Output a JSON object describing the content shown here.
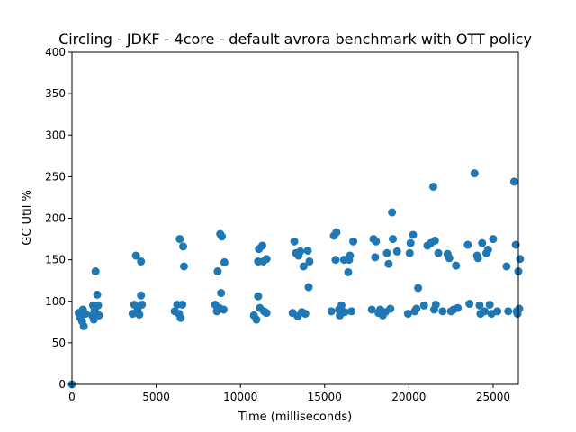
{
  "chart_data": {
    "type": "scatter",
    "title": "Circling - JDKF - 4core -  default avrora benchmark with OTT policy",
    "xlabel": "Time (milliseconds)",
    "ylabel": "GC Util %",
    "xlim": [
      0,
      26500
    ],
    "ylim": [
      0,
      400
    ],
    "xticks": [
      0,
      5000,
      10000,
      15000,
      20000,
      25000
    ],
    "yticks": [
      0,
      50,
      100,
      150,
      200,
      250,
      300,
      350,
      400
    ],
    "grid": false,
    "marker_color": "#1f77b4",
    "series": [
      {
        "points": [
          [
            0,
            0
          ],
          [
            400,
            86
          ],
          [
            500,
            80
          ],
          [
            600,
            76
          ],
          [
            650,
            90
          ],
          [
            700,
            70
          ],
          [
            800,
            85
          ],
          [
            1200,
            83
          ],
          [
            1250,
            95
          ],
          [
            1300,
            78
          ],
          [
            1350,
            90
          ],
          [
            1400,
            136
          ],
          [
            1500,
            108
          ],
          [
            1550,
            95
          ],
          [
            1600,
            83
          ],
          [
            3600,
            85
          ],
          [
            3700,
            96
          ],
          [
            3800,
            155
          ],
          [
            3900,
            90
          ],
          [
            4000,
            84
          ],
          [
            4100,
            148
          ],
          [
            4100,
            107
          ],
          [
            4150,
            96
          ],
          [
            6100,
            88
          ],
          [
            6250,
            96
          ],
          [
            6350,
            85
          ],
          [
            6400,
            175
          ],
          [
            6450,
            80
          ],
          [
            6550,
            96
          ],
          [
            6600,
            166
          ],
          [
            6650,
            142
          ],
          [
            8500,
            96
          ],
          [
            8600,
            88
          ],
          [
            8650,
            136
          ],
          [
            8750,
            92
          ],
          [
            8800,
            181
          ],
          [
            8850,
            110
          ],
          [
            8900,
            178
          ],
          [
            9000,
            90
          ],
          [
            9050,
            147
          ],
          [
            10800,
            83
          ],
          [
            10950,
            78
          ],
          [
            11050,
            106
          ],
          [
            11050,
            148
          ],
          [
            11100,
            163
          ],
          [
            11150,
            92
          ],
          [
            11300,
            167
          ],
          [
            11350,
            148
          ],
          [
            11400,
            88
          ],
          [
            11550,
            151
          ],
          [
            11550,
            86
          ],
          [
            13100,
            86
          ],
          [
            13200,
            172
          ],
          [
            13300,
            158
          ],
          [
            13400,
            82
          ],
          [
            13450,
            155
          ],
          [
            13550,
            160
          ],
          [
            13650,
            87
          ],
          [
            13750,
            142
          ],
          [
            13850,
            85
          ],
          [
            14000,
            161
          ],
          [
            14050,
            117
          ],
          [
            14100,
            148
          ],
          [
            15400,
            88
          ],
          [
            15550,
            179
          ],
          [
            15650,
            150
          ],
          [
            15700,
            183
          ],
          [
            15850,
            90
          ],
          [
            15900,
            83
          ],
          [
            16000,
            95
          ],
          [
            16150,
            150
          ],
          [
            16200,
            87
          ],
          [
            16400,
            135
          ],
          [
            16450,
            150
          ],
          [
            16500,
            155
          ],
          [
            16600,
            88
          ],
          [
            16700,
            172
          ],
          [
            17800,
            90
          ],
          [
            17900,
            175
          ],
          [
            18000,
            153
          ],
          [
            18050,
            172
          ],
          [
            18200,
            86
          ],
          [
            18300,
            90
          ],
          [
            18450,
            83
          ],
          [
            18600,
            87
          ],
          [
            18700,
            158
          ],
          [
            18800,
            145
          ],
          [
            18900,
            91
          ],
          [
            19000,
            207
          ],
          [
            19050,
            175
          ],
          [
            19300,
            160
          ],
          [
            19950,
            85
          ],
          [
            20050,
            158
          ],
          [
            20100,
            170
          ],
          [
            20250,
            180
          ],
          [
            20350,
            88
          ],
          [
            20450,
            91
          ],
          [
            20550,
            116
          ],
          [
            20900,
            95
          ],
          [
            21100,
            167
          ],
          [
            21300,
            170
          ],
          [
            21450,
            238
          ],
          [
            21500,
            90
          ],
          [
            21550,
            173
          ],
          [
            21600,
            96
          ],
          [
            21750,
            158
          ],
          [
            22000,
            88
          ],
          [
            22300,
            157
          ],
          [
            22400,
            152
          ],
          [
            22500,
            88
          ],
          [
            22650,
            90
          ],
          [
            22800,
            143
          ],
          [
            22900,
            92
          ],
          [
            23500,
            168
          ],
          [
            23600,
            97
          ],
          [
            23900,
            254
          ],
          [
            24050,
            155
          ],
          [
            24100,
            152
          ],
          [
            24200,
            95
          ],
          [
            24250,
            85
          ],
          [
            24350,
            170
          ],
          [
            24500,
            88
          ],
          [
            24600,
            158
          ],
          [
            24700,
            162
          ],
          [
            24800,
            96
          ],
          [
            24900,
            85
          ],
          [
            25000,
            175
          ],
          [
            25250,
            88
          ],
          [
            25800,
            142
          ],
          [
            25900,
            88
          ],
          [
            26250,
            244
          ],
          [
            26350,
            168
          ],
          [
            26400,
            88
          ],
          [
            26450,
            85
          ],
          [
            26500,
            136
          ],
          [
            26550,
            91
          ],
          [
            26600,
            151
          ]
        ]
      }
    ]
  }
}
